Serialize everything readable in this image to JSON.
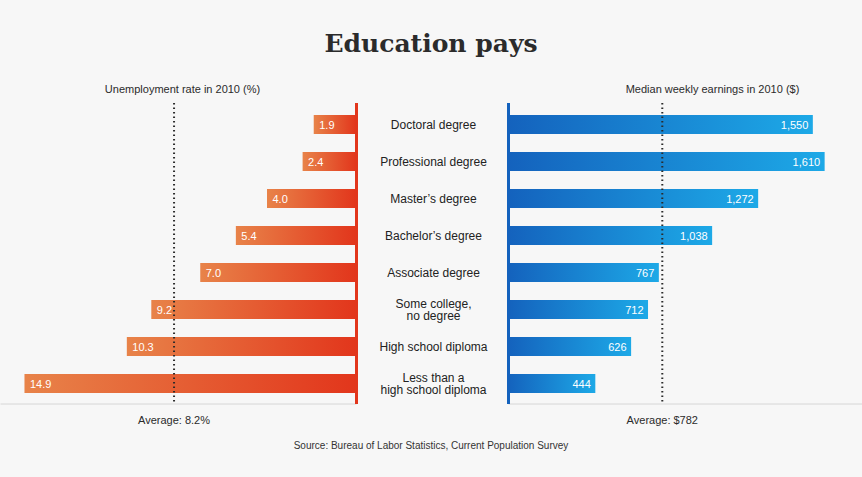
{
  "title": "Education pays",
  "caption": "Source: Bureau of Labor Statistics, Current Population Survey",
  "chart_data": [
    {
      "type": "bar",
      "orientation": "horizontal",
      "title": "Unemployment rate in 2010 (%)",
      "categories": [
        "Doctoral degree",
        "Professional degree",
        "Master’s degree",
        "Bachelor’s degree",
        "Associate degree",
        "Some college,\nno degree",
        "High school diploma",
        "Less than a\nhigh school diploma"
      ],
      "values": [
        1.9,
        2.4,
        4.0,
        5.4,
        7.0,
        9.2,
        10.3,
        14.9
      ],
      "value_labels": [
        "1.9",
        "2.4",
        "4.0",
        "5.4",
        "7.0",
        "9.2",
        "10.3",
        "14.9"
      ],
      "color": "#e2361c",
      "xlim": [
        0,
        16
      ],
      "xticks": [],
      "tick_labels": false,
      "data_labels": true,
      "grid": false,
      "average": {
        "value": 8.2,
        "label": "Average: 8.2%"
      }
    },
    {
      "type": "bar",
      "orientation": "horizontal",
      "title": "Median weekly earnings in 2010 ($)",
      "categories": [
        "Doctoral degree",
        "Professional degree",
        "Master’s degree",
        "Bachelor’s degree",
        "Associate degree",
        "Some college,\nno degree",
        "High school diploma",
        "Less than a\nhigh school diploma"
      ],
      "values": [
        1550,
        1610,
        1272,
        1038,
        767,
        712,
        626,
        444
      ],
      "value_labels": [
        "1,550",
        "1,610",
        "1,272",
        "1,038",
        "767",
        "712",
        "626",
        "444"
      ],
      "color": "#1462bd",
      "xlim": [
        0,
        1800
      ],
      "xticks": [],
      "tick_labels": false,
      "data_labels": true,
      "grid": false,
      "average": {
        "value": 782,
        "label": "Average: $782"
      }
    }
  ]
}
